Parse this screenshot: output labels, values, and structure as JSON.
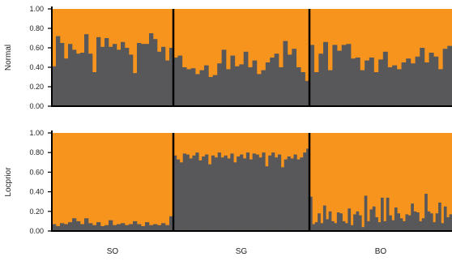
{
  "colors": {
    "cluster1": "#F7941D",
    "cluster2": "#58585A",
    "axis": "#000000",
    "text": "#222222"
  },
  "chart_data": {
    "type": "bar",
    "stacked": true,
    "ylim": [
      0,
      1
    ],
    "yticks": [
      "1.00",
      "0.80",
      "0.60",
      "0.40",
      "0.20",
      "0.00"
    ],
    "groups": [
      "SO",
      "SG",
      "BO"
    ],
    "grid": false,
    "panels": [
      {
        "ylabel": "Normal",
        "series_gray": [
          [
            0.41,
            0.72,
            0.65,
            0.49,
            0.64,
            0.58,
            0.54,
            0.55,
            0.74,
            0.54,
            0.35,
            0.71,
            0.61,
            0.7,
            0.61,
            0.64,
            0.58,
            0.66,
            0.6,
            0.53,
            0.34,
            0.65,
            0.64,
            0.64,
            0.75,
            0.69,
            0.56,
            0.61,
            0.47,
            0.6
          ],
          [
            0.5,
            0.52,
            0.4,
            0.38,
            0.39,
            0.33,
            0.37,
            0.42,
            0.3,
            0.32,
            0.44,
            0.58,
            0.38,
            0.52,
            0.41,
            0.43,
            0.56,
            0.4,
            0.47,
            0.33,
            0.37,
            0.45,
            0.5,
            0.54,
            0.4,
            0.67,
            0.53,
            0.59,
            0.4,
            0.35,
            0.26
          ],
          [
            0.63,
            0.35,
            0.54,
            0.66,
            0.37,
            0.63,
            0.57,
            0.63,
            0.64,
            0.49,
            0.5,
            0.37,
            0.47,
            0.5,
            0.35,
            0.48,
            0.56,
            0.4,
            0.42,
            0.38,
            0.45,
            0.49,
            0.44,
            0.51,
            0.6,
            0.45,
            0.55,
            0.51,
            0.38,
            0.59,
            0.62
          ]
        ]
      },
      {
        "ylabel": "Locprior",
        "series_gray": [
          [
            0.07,
            0.05,
            0.08,
            0.07,
            0.09,
            0.13,
            0.1,
            0.07,
            0.13,
            0.08,
            0.06,
            0.09,
            0.05,
            0.06,
            0.11,
            0.06,
            0.07,
            0.08,
            0.06,
            0.07,
            0.1,
            0.07,
            0.05,
            0.09,
            0.06,
            0.07,
            0.06,
            0.08,
            0.06,
            0.15
          ],
          [
            0.77,
            0.73,
            0.7,
            0.79,
            0.78,
            0.74,
            0.77,
            0.8,
            0.72,
            0.76,
            0.78,
            0.68,
            0.77,
            0.75,
            0.8,
            0.75,
            0.77,
            0.74,
            0.79,
            0.7,
            0.76,
            0.78,
            0.74,
            0.8,
            0.73,
            0.79,
            0.78,
            0.75,
            0.8,
            0.66,
            0.77,
            0.8,
            0.75,
            0.78,
            0.65,
            0.73,
            0.76,
            0.74,
            0.78,
            0.73,
            0.75,
            0.8,
            0.84
          ],
          [
            0.35,
            0.07,
            0.09,
            0.18,
            0.08,
            0.26,
            0.12,
            0.2,
            0.1,
            0.08,
            0.19,
            0.18,
            0.1,
            0.08,
            0.23,
            0.06,
            0.17,
            0.2,
            0.16,
            0.04,
            0.36,
            0.1,
            0.22,
            0.25,
            0.14,
            0.09,
            0.34,
            0.1,
            0.34,
            0.16,
            0.11,
            0.24,
            0.18,
            0.13,
            0.1,
            0.17,
            0.16,
            0.28,
            0.2,
            0.19,
            0.1,
            0.13,
            0.38,
            0.2,
            0.18,
            0.09,
            0.18,
            0.29,
            0.08,
            0.25,
            0.14,
            0.17
          ]
        ]
      }
    ]
  }
}
